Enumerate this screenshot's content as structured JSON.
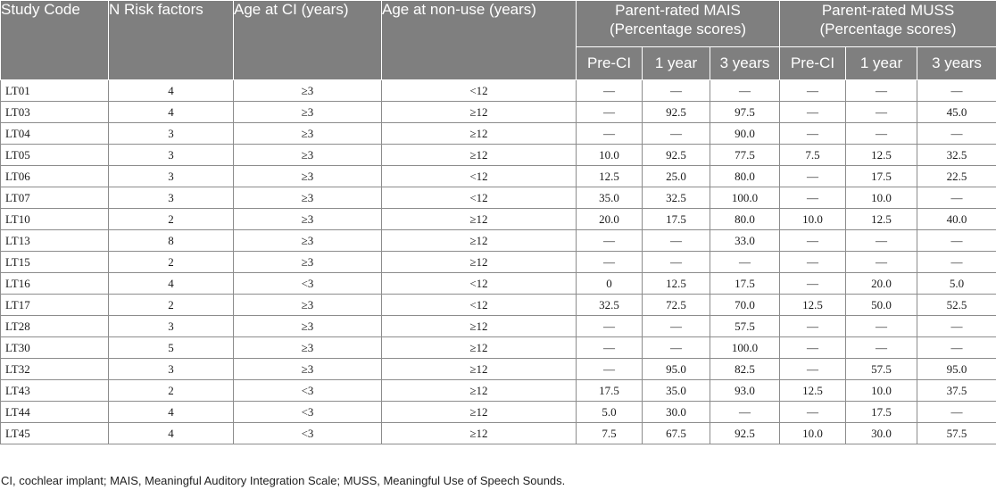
{
  "headers": {
    "study_code": "Study Code",
    "n_risk": "N Risk factors",
    "age_ci": "Age at CI (years)",
    "age_nonuse": "Age at non-use (years)",
    "mais_line1": "Parent-rated MAIS",
    "mais_line2": "(Percentage scores)",
    "muss_line1": "Parent-rated MUSS",
    "muss_line2": "(Percentage scores)",
    "sub": [
      "Pre-CI",
      "1 year",
      "3 years",
      "Pre-CI",
      "1 year",
      "3 years"
    ]
  },
  "rows": [
    [
      "LT01",
      "4",
      "≥3",
      "<12",
      "—",
      "—",
      "—",
      "—",
      "—",
      "—"
    ],
    [
      "LT03",
      "4",
      "≥3",
      "≥12",
      "—",
      "92.5",
      "97.5",
      "—",
      "—",
      "45.0"
    ],
    [
      "LT04",
      "3",
      "≥3",
      "≥12",
      "—",
      "—",
      "90.0",
      "—",
      "—",
      "—"
    ],
    [
      "LT05",
      "3",
      "≥3",
      "≥12",
      "10.0",
      "92.5",
      "77.5",
      "7.5",
      "12.5",
      "32.5"
    ],
    [
      "LT06",
      "3",
      "≥3",
      "<12",
      "12.5",
      "25.0",
      "80.0",
      "—",
      "17.5",
      "22.5"
    ],
    [
      "LT07",
      "3",
      "≥3",
      "<12",
      "35.0",
      "32.5",
      "100.0",
      "—",
      "10.0",
      "—"
    ],
    [
      "LT10",
      "2",
      "≥3",
      "≥12",
      "20.0",
      "17.5",
      "80.0",
      "10.0",
      "12.5",
      "40.0"
    ],
    [
      "LT13",
      "8",
      "≥3",
      "≥12",
      "—",
      "—",
      "33.0",
      "—",
      "—",
      "—"
    ],
    [
      "LT15",
      "2",
      "≥3",
      "≥12",
      "—",
      "—",
      "—",
      "—",
      "—",
      "—"
    ],
    [
      "LT16",
      "4",
      "<3",
      "<12",
      "0",
      "12.5",
      "17.5",
      "—",
      "20.0",
      "5.0"
    ],
    [
      "LT17",
      "2",
      "≥3",
      "<12",
      "32.5",
      "72.5",
      "70.0",
      "12.5",
      "50.0",
      "52.5"
    ],
    [
      "LT28",
      "3",
      "≥3",
      "≥12",
      "—",
      "—",
      "57.5",
      "—",
      "—",
      "—"
    ],
    [
      "LT30",
      "5",
      "≥3",
      "≥12",
      "—",
      "—",
      "100.0",
      "—",
      "—",
      "—"
    ],
    [
      "LT32",
      "3",
      "≥3",
      "≥12",
      "—",
      "95.0",
      "82.5",
      "—",
      "57.5",
      "95.0"
    ],
    [
      "LT43",
      "2",
      "<3",
      "≥12",
      "17.5",
      "35.0",
      "93.0",
      "12.5",
      "10.0",
      "37.5"
    ],
    [
      "LT44",
      "4",
      "<3",
      "≥12",
      "5.0",
      "30.0",
      "—",
      "—",
      "17.5",
      "—"
    ],
    [
      "LT45",
      "4",
      "<3",
      "≥12",
      "7.5",
      "67.5",
      "92.5",
      "10.0",
      "30.0",
      "57.5"
    ]
  ],
  "footnote": "CI, cochlear implant; MAIS, Meaningful Auditory Integration Scale; MUSS, Meaningful Use of Speech Sounds."
}
